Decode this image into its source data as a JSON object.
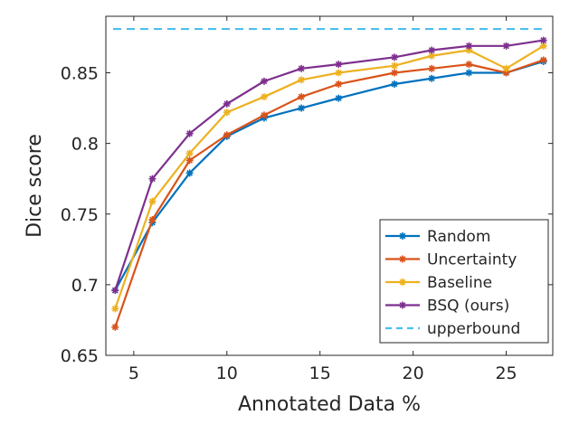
{
  "chart_data": {
    "type": "line",
    "title": "",
    "xlabel": "Annotated Data %",
    "ylabel": "Dice score",
    "xlim": [
      3.5,
      27.5
    ],
    "ylim": [
      0.65,
      0.89
    ],
    "xticks": [
      5,
      10,
      15,
      20,
      25
    ],
    "yticks": [
      0.65,
      0.7,
      0.75,
      0.8,
      0.85
    ],
    "xtick_labels": [
      "5",
      "10",
      "15",
      "20",
      "25"
    ],
    "ytick_labels": [
      "0.65",
      "0.7",
      "0.75",
      "0.8",
      "0.85"
    ],
    "grid": false,
    "legend_position": "bottom-right",
    "x": [
      4,
      6,
      8,
      10,
      12,
      14,
      16,
      19,
      21,
      23,
      25,
      27
    ],
    "series": [
      {
        "name": "Random",
        "color": "#0072BD",
        "style": "solid",
        "marker": "star",
        "values": [
          0.696,
          0.744,
          0.779,
          0.805,
          0.818,
          0.825,
          0.832,
          0.842,
          0.846,
          0.85,
          0.85,
          0.858
        ]
      },
      {
        "name": "Uncertainty",
        "color": "#D95319",
        "style": "solid",
        "marker": "star",
        "values": [
          0.67,
          0.746,
          0.788,
          0.806,
          0.82,
          0.833,
          0.842,
          0.85,
          0.853,
          0.856,
          0.85,
          0.859
        ]
      },
      {
        "name": "Baseline",
        "color": "#EDB120",
        "style": "solid",
        "marker": "star",
        "values": [
          0.683,
          0.759,
          0.793,
          0.822,
          0.833,
          0.845,
          0.85,
          0.855,
          0.862,
          0.866,
          0.853,
          0.869
        ]
      },
      {
        "name": "BSQ (ours)",
        "color": "#7E2F8E",
        "style": "solid",
        "marker": "star",
        "values": [
          0.696,
          0.775,
          0.807,
          0.828,
          0.844,
          0.853,
          0.856,
          0.861,
          0.866,
          0.869,
          0.869,
          0.873
        ]
      },
      {
        "name": "upperbound",
        "color": "#4DBEEE",
        "style": "dashed",
        "marker": "none",
        "values": [
          0.881,
          0.881,
          0.881,
          0.881,
          0.881,
          0.881,
          0.881,
          0.881,
          0.881,
          0.881,
          0.881,
          0.881
        ]
      }
    ]
  }
}
